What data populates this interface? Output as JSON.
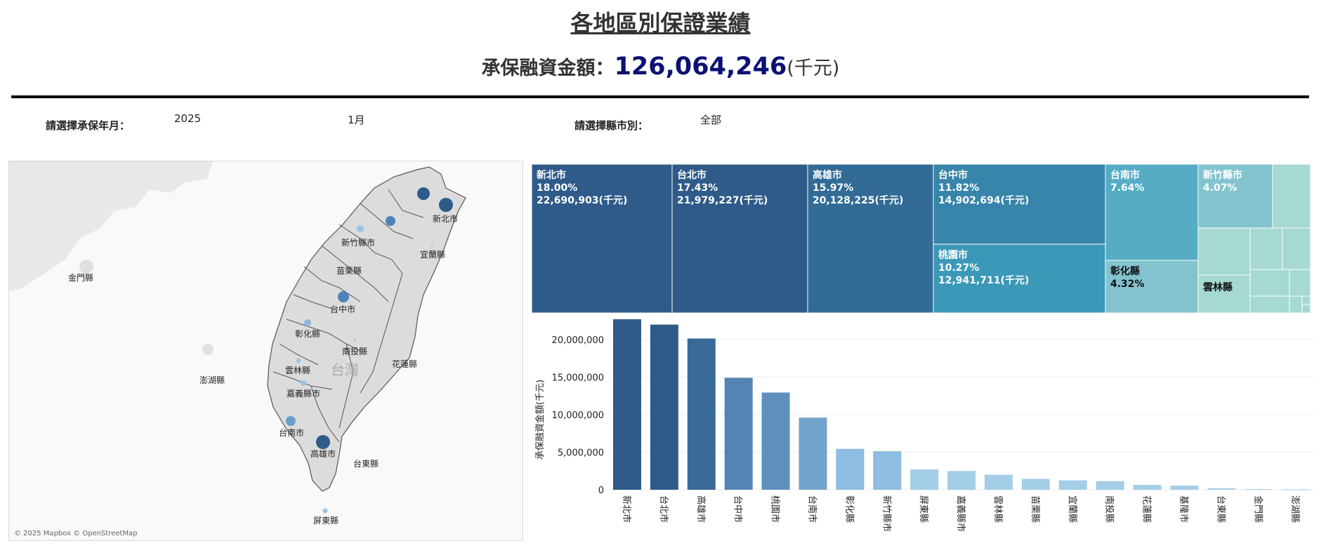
{
  "header": {
    "title": "各地區別保證業績",
    "amount_label": "承保融資金額：",
    "amount_value": "126,064,246",
    "amount_unit": "(千元)"
  },
  "filters": {
    "period_label": "請選擇承保年月：",
    "year": "2025",
    "month": "1月",
    "county_label": "請選擇縣市別：",
    "county": "全部"
  },
  "map": {
    "sea_label": "台灣",
    "attribution": "© 2025 Mapbox © OpenStreetMap",
    "labels": [
      "新北市",
      "新竹縣市",
      "宜蘭縣",
      "苗栗縣",
      "台中市",
      "彰化縣",
      "南投縣",
      "雲林縣",
      "花蓮縣",
      "嘉義縣市",
      "台南市",
      "高雄市",
      "台東縣",
      "屏東縣",
      "金門縣",
      "澎湖縣"
    ]
  },
  "treemap": {
    "colors": {
      "新北市": "#2e5b89",
      "台北市": "#2e5b89",
      "高雄市": "#326b95",
      "台中市": "#3785aa",
      "桃園市": "#3c98b8",
      "台南市": "#55acc4",
      "新竹縣市": "#82c3cf",
      "彰化縣": "#82c3cf",
      "雲林縣": "#a5d9d2",
      "small": "#a5d9d2"
    },
    "tiles": [
      {
        "name": "新北市",
        "pct": "18.00%",
        "amount": "22,690,903(千元)"
      },
      {
        "name": "台北市",
        "pct": "17.43%",
        "amount": "21,979,227(千元)"
      },
      {
        "name": "高雄市",
        "pct": "15.97%",
        "amount": "20,128,225(千元)"
      },
      {
        "name": "台中市",
        "pct": "11.82%",
        "amount": "14,902,694(千元)"
      },
      {
        "name": "桃園市",
        "pct": "10.27%",
        "amount": "12,941,711(千元)"
      },
      {
        "name": "台南市",
        "pct": "7.64%",
        "amount": ""
      },
      {
        "name": "新竹縣市",
        "pct": "4.07%",
        "amount": ""
      },
      {
        "name": "彰化縣",
        "pct": "4.32%",
        "amount": ""
      },
      {
        "name": "雲林縣",
        "pct": "",
        "amount": ""
      }
    ]
  },
  "chart_data": {
    "type": "bar",
    "title": "",
    "xlabel": "",
    "ylabel": "承保融資金額(千元)",
    "ylim": [
      0,
      22690903
    ],
    "yticks": [
      0,
      5000000,
      10000000,
      15000000,
      20000000
    ],
    "ytick_labels": [
      "0",
      "5,000,000",
      "10,000,000",
      "15,000,000",
      "20,000,000"
    ],
    "grid": true,
    "categories": [
      "新北市",
      "台北市",
      "高雄市",
      "台中市",
      "桃園市",
      "台南市",
      "彰化縣",
      "新竹縣市",
      "屏東縣",
      "嘉義縣市",
      "雲林縣",
      "苗栗縣",
      "宜蘭縣",
      "南投縣",
      "花蓮縣",
      "基隆市",
      "台東縣",
      "金門縣",
      "澎湖縣"
    ],
    "values": [
      22690903,
      21979227,
      20128225,
      14902694,
      12941711,
      9600000,
      5450000,
      5130000,
      2700000,
      2500000,
      2000000,
      1450000,
      1250000,
      1150000,
      650000,
      550000,
      200000,
      80000,
      50000
    ],
    "colors": [
      "#2e5b89",
      "#2e5b89",
      "#386a97",
      "#5384b3",
      "#5f90bd",
      "#70a4cd",
      "#8dbde0",
      "#8dbde0",
      "#a4cde8",
      "#a4cde8",
      "#a4cde8",
      "#a4cde8",
      "#a4cde8",
      "#a4cde8",
      "#a4cde8",
      "#a4cde8",
      "#a4cde8",
      "#a4cde8",
      "#a4cde8"
    ]
  }
}
